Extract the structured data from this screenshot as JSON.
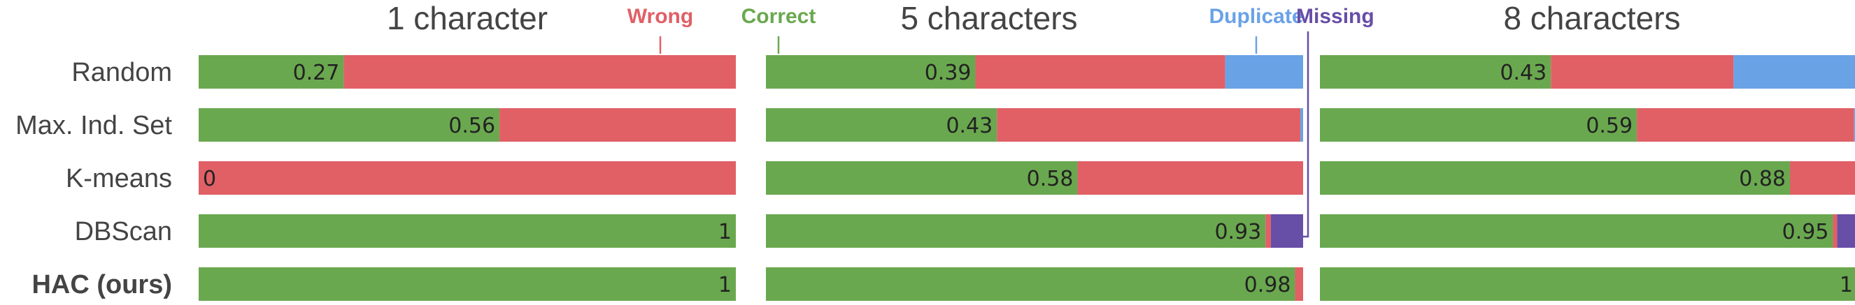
{
  "chart_data": {
    "type": "bar",
    "orientation": "horizontal",
    "stacked": true,
    "normalized": true,
    "methods": [
      "Random",
      "Max. Ind. Set",
      "K-means",
      "DBScan",
      "HAC (ours)"
    ],
    "highlighted_method": "HAC (ours)",
    "segments": [
      "Correct",
      "Wrong",
      "Duplicate",
      "Missing"
    ],
    "colors": {
      "Correct": "#6aa84f",
      "Wrong": "#e06066",
      "Duplicate": "#6aa2e6",
      "Missing": "#674ea7"
    },
    "legend": [
      {
        "name": "Wrong",
        "color": "#e06066"
      },
      {
        "name": "Correct",
        "color": "#6aa84f"
      },
      {
        "name": "Duplicate",
        "color": "#6aa2e6"
      },
      {
        "name": "Missing",
        "color": "#674ea7"
      }
    ],
    "panels": [
      {
        "title": "1 character",
        "rows": [
          {
            "method": "Random",
            "label": "0.27",
            "values": {
              "Correct": 0.27,
              "Wrong": 0.73,
              "Duplicate": 0,
              "Missing": 0
            }
          },
          {
            "method": "Max. Ind. Set",
            "label": "0.56",
            "values": {
              "Correct": 0.56,
              "Wrong": 0.44,
              "Duplicate": 0,
              "Missing": 0
            }
          },
          {
            "method": "K-means",
            "label": "0",
            "values": {
              "Correct": 0,
              "Wrong": 1.0,
              "Duplicate": 0,
              "Missing": 0
            }
          },
          {
            "method": "DBScan",
            "label": "1",
            "values": {
              "Correct": 1.0,
              "Wrong": 0,
              "Duplicate": 0,
              "Missing": 0
            }
          },
          {
            "method": "HAC (ours)",
            "label": "1",
            "values": {
              "Correct": 1.0,
              "Wrong": 0,
              "Duplicate": 0,
              "Missing": 0
            }
          }
        ]
      },
      {
        "title": "5 characters",
        "rows": [
          {
            "method": "Random",
            "label": "0.39",
            "values": {
              "Correct": 0.39,
              "Wrong": 0.465,
              "Duplicate": 0.145,
              "Missing": 0
            }
          },
          {
            "method": "Max. Ind. Set",
            "label": "0.43",
            "values": {
              "Correct": 0.43,
              "Wrong": 0.565,
              "Duplicate": 0.005,
              "Missing": 0
            }
          },
          {
            "method": "K-means",
            "label": "0.58",
            "values": {
              "Correct": 0.58,
              "Wrong": 0.42,
              "Duplicate": 0,
              "Missing": 0
            }
          },
          {
            "method": "DBScan",
            "label": "0.93",
            "values": {
              "Correct": 0.93,
              "Wrong": 0.01,
              "Duplicate": 0,
              "Missing": 0.06
            }
          },
          {
            "method": "HAC (ours)",
            "label": "0.98",
            "values": {
              "Correct": 0.985,
              "Wrong": 0.015,
              "Duplicate": 0,
              "Missing": 0
            }
          }
        ]
      },
      {
        "title": "8 characters",
        "rows": [
          {
            "method": "Random",
            "label": "0.43",
            "values": {
              "Correct": 0.43,
              "Wrong": 0.34,
              "Duplicate": 0.23,
              "Missing": 0
            }
          },
          {
            "method": "Max. Ind. Set",
            "label": "0.59",
            "values": {
              "Correct": 0.59,
              "Wrong": 0.404,
              "Duplicate": 0.006,
              "Missing": 0
            }
          },
          {
            "method": "K-means",
            "label": "0.88",
            "values": {
              "Correct": 0.875,
              "Wrong": 0.125,
              "Duplicate": 0,
              "Missing": 0
            }
          },
          {
            "method": "DBScan",
            "label": "0.95",
            "values": {
              "Correct": 0.955,
              "Wrong": 0.008,
              "Duplicate": 0,
              "Missing": 0.037
            }
          },
          {
            "method": "HAC (ours)",
            "label": "1",
            "values": {
              "Correct": 1.0,
              "Wrong": 0,
              "Duplicate": 0,
              "Missing": 0
            }
          }
        ]
      }
    ]
  }
}
